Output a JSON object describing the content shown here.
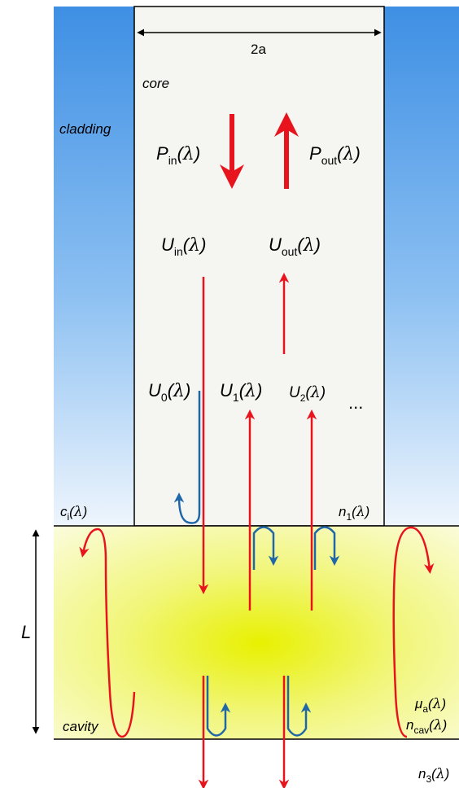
{
  "labels": {
    "width_label": "2a",
    "core": "core",
    "cladding": "cladding",
    "cavity": "cavity",
    "length": "L",
    "ellipsis": "...",
    "lambda": "λ",
    "P_in": {
      "base": "P",
      "sub": "in"
    },
    "P_out": {
      "base": "P",
      "sub": "out"
    },
    "U_in": {
      "base": "U",
      "sub": "in"
    },
    "U_out": {
      "base": "U",
      "sub": "out"
    },
    "U_0": {
      "base": "U",
      "sub": "0"
    },
    "U_1": {
      "base": "U",
      "sub": "1"
    },
    "U_2": {
      "base": "U",
      "sub": "2"
    },
    "c_i": {
      "base": "c",
      "sub": "i"
    },
    "n_1": {
      "base": "n",
      "sub": "1"
    },
    "mu_a": {
      "base": "μ",
      "sub": "a"
    },
    "n_cav": {
      "base": "n",
      "sub": "cav"
    },
    "n_3": {
      "base": "n",
      "sub": "3"
    }
  },
  "colors": {
    "incident_arrow": "#e8141d",
    "reflected_arrow": "#1f67a8",
    "cladding_top": "#3e8fe4",
    "cladding_bottom": "#e9f3fd",
    "core_fill": "#f5f5f1",
    "cavity_center": "#e8f000",
    "cavity_edge": "#fafbd6"
  }
}
